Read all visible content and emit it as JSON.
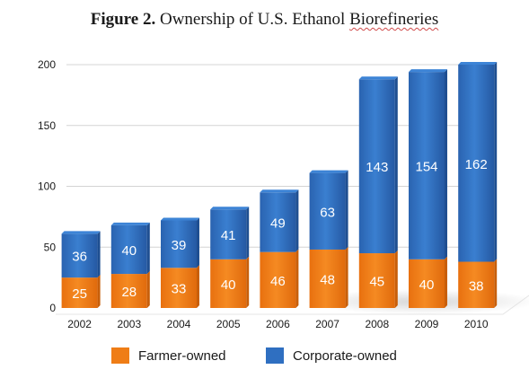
{
  "title": {
    "prefix": "Figure 2.",
    "text_plain": "Ownership of  U.S. Ethanol ",
    "text_underlined": "Biorefineries"
  },
  "colors": {
    "farmer": "#ef7d16",
    "corporate": "#2f6fc1",
    "grid": "#d4d4d4",
    "axis_text": "#1a1a1a",
    "bar_label": "#ffffff"
  },
  "chart_data": {
    "type": "bar",
    "stacked": true,
    "categories": [
      "2002",
      "2003",
      "2004",
      "2005",
      "2006",
      "2007",
      "2008",
      "2009",
      "2010"
    ],
    "series": [
      {
        "name": "Farmer-owned",
        "values": [
          25,
          28,
          33,
          40,
          46,
          48,
          45,
          40,
          38
        ]
      },
      {
        "name": "Corporate-owned",
        "values": [
          36,
          40,
          39,
          41,
          49,
          63,
          143,
          154,
          162
        ]
      }
    ],
    "ylim": [
      0,
      200
    ],
    "yticks": [
      0,
      50,
      100,
      150,
      200
    ],
    "grid": true,
    "legend_position": "bottom"
  }
}
